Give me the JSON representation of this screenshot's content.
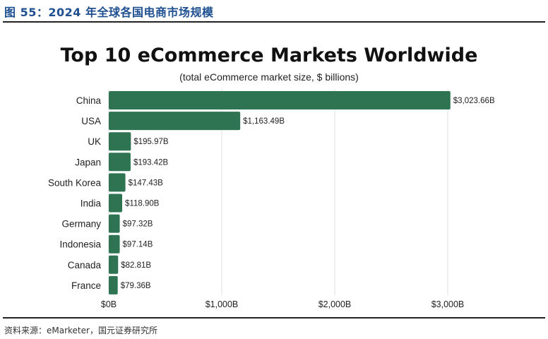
{
  "caption": "图 55：2024 年全球各国电商市场规模",
  "source": "资料来源：eMarketer，国元证券研究所",
  "chart_data": {
    "type": "bar",
    "orientation": "horizontal",
    "title": "Top 10 eCommerce Markets Worldwide",
    "subtitle": "(total eCommerce market size, $ billions)",
    "categories": [
      "China",
      "USA",
      "UK",
      "Japan",
      "South Korea",
      "India",
      "Germany",
      "Indonesia",
      "Canada",
      "France"
    ],
    "values": [
      3023.66,
      1163.49,
      195.97,
      193.42,
      147.43,
      118.9,
      97.32,
      97.14,
      82.81,
      79.36
    ],
    "value_labels": [
      "$3,023.66B",
      "$1,163.49B",
      "$195.97B",
      "$193.42B",
      "$147.43B",
      "$118.90B",
      "$97.32B",
      "$97.14B",
      "$82.81B",
      "$79.36B"
    ],
    "xlim": [
      0,
      3000
    ],
    "xticks": [
      0,
      1000,
      2000,
      3000
    ],
    "xtick_labels": [
      "$0B",
      "$1,000B",
      "$2,000B",
      "$3,000B"
    ],
    "grid": true,
    "bar_color": "#2f7452"
  }
}
